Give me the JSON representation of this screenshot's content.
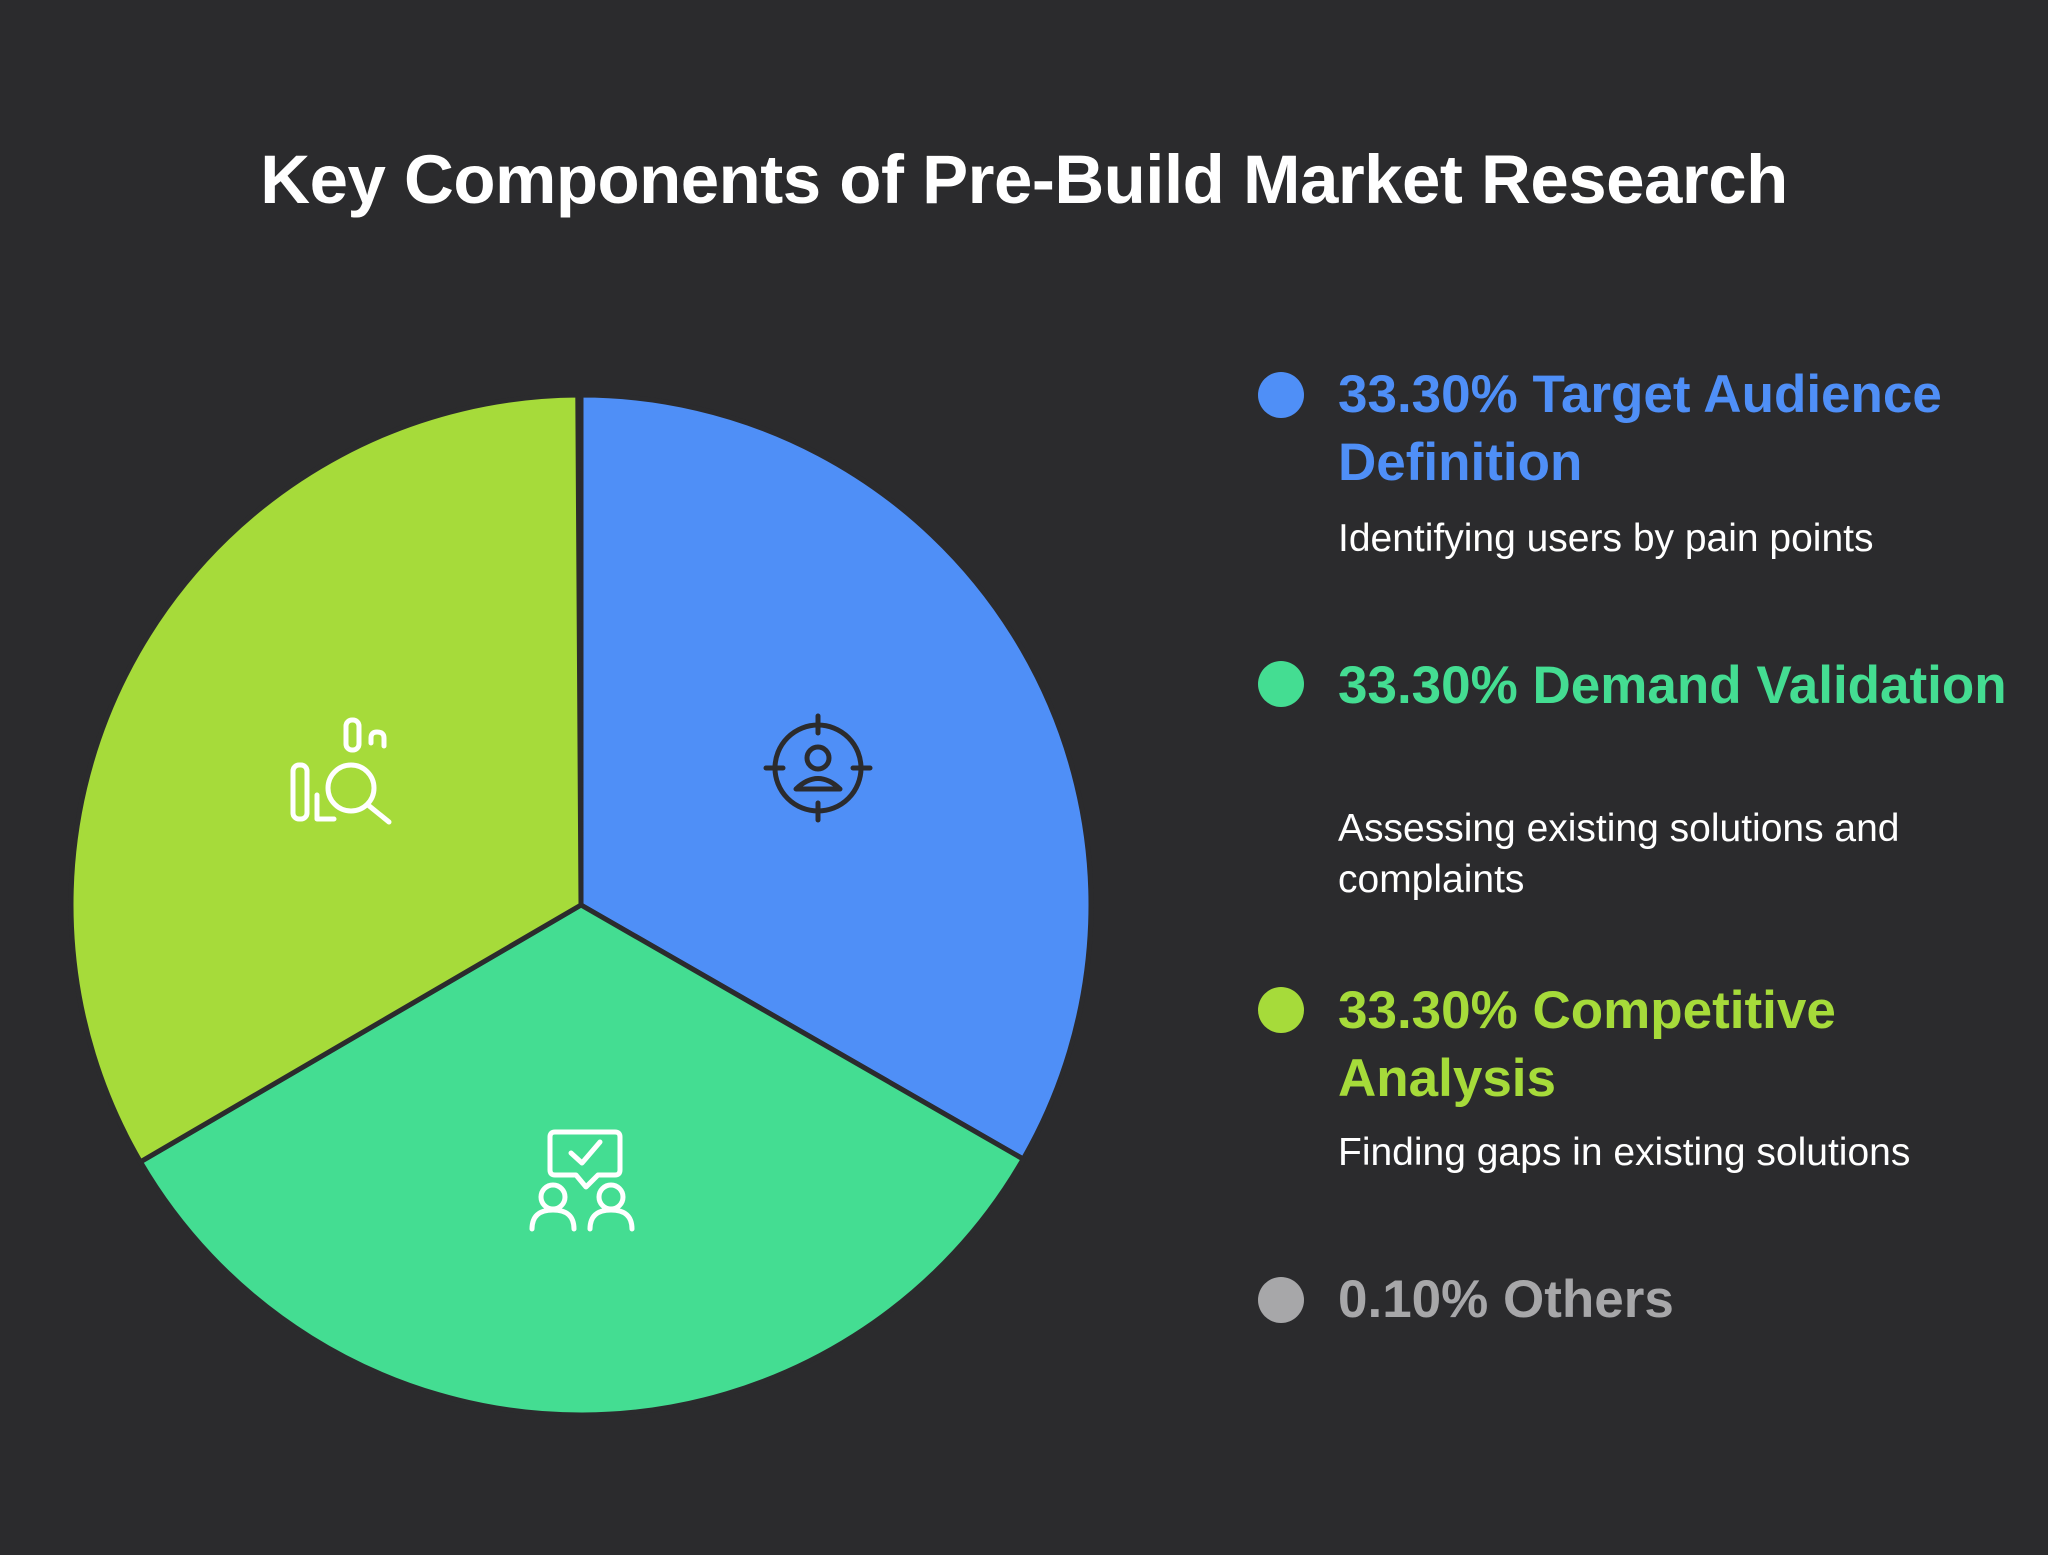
{
  "chart_data": {
    "type": "pie",
    "title": "Key Components of Pre-Build Market Research",
    "slices": [
      {
        "label": "Target Audience Definition",
        "percent_label": "33.30%",
        "value": 33.3,
        "description": "Identifying users by pain points",
        "color": "#4f8ff7",
        "icon": "target-user-icon"
      },
      {
        "label": "Demand Validation",
        "percent_label": "33.30%",
        "value": 33.3,
        "description": "Assessing existing solutions and complaints",
        "color": "#44dd92",
        "icon": "people-feedback-icon"
      },
      {
        "label": "Competitive Analysis",
        "percent_label": "33.30%",
        "value": 33.3,
        "description": "Finding gaps in existing solutions",
        "color": "#a6db3a",
        "icon": "chart-search-icon"
      },
      {
        "label": "Others",
        "percent_label": "0.10%",
        "value": 0.1,
        "description": "",
        "color": "#a7a7a9",
        "icon": ""
      }
    ],
    "legend_position": "right"
  }
}
